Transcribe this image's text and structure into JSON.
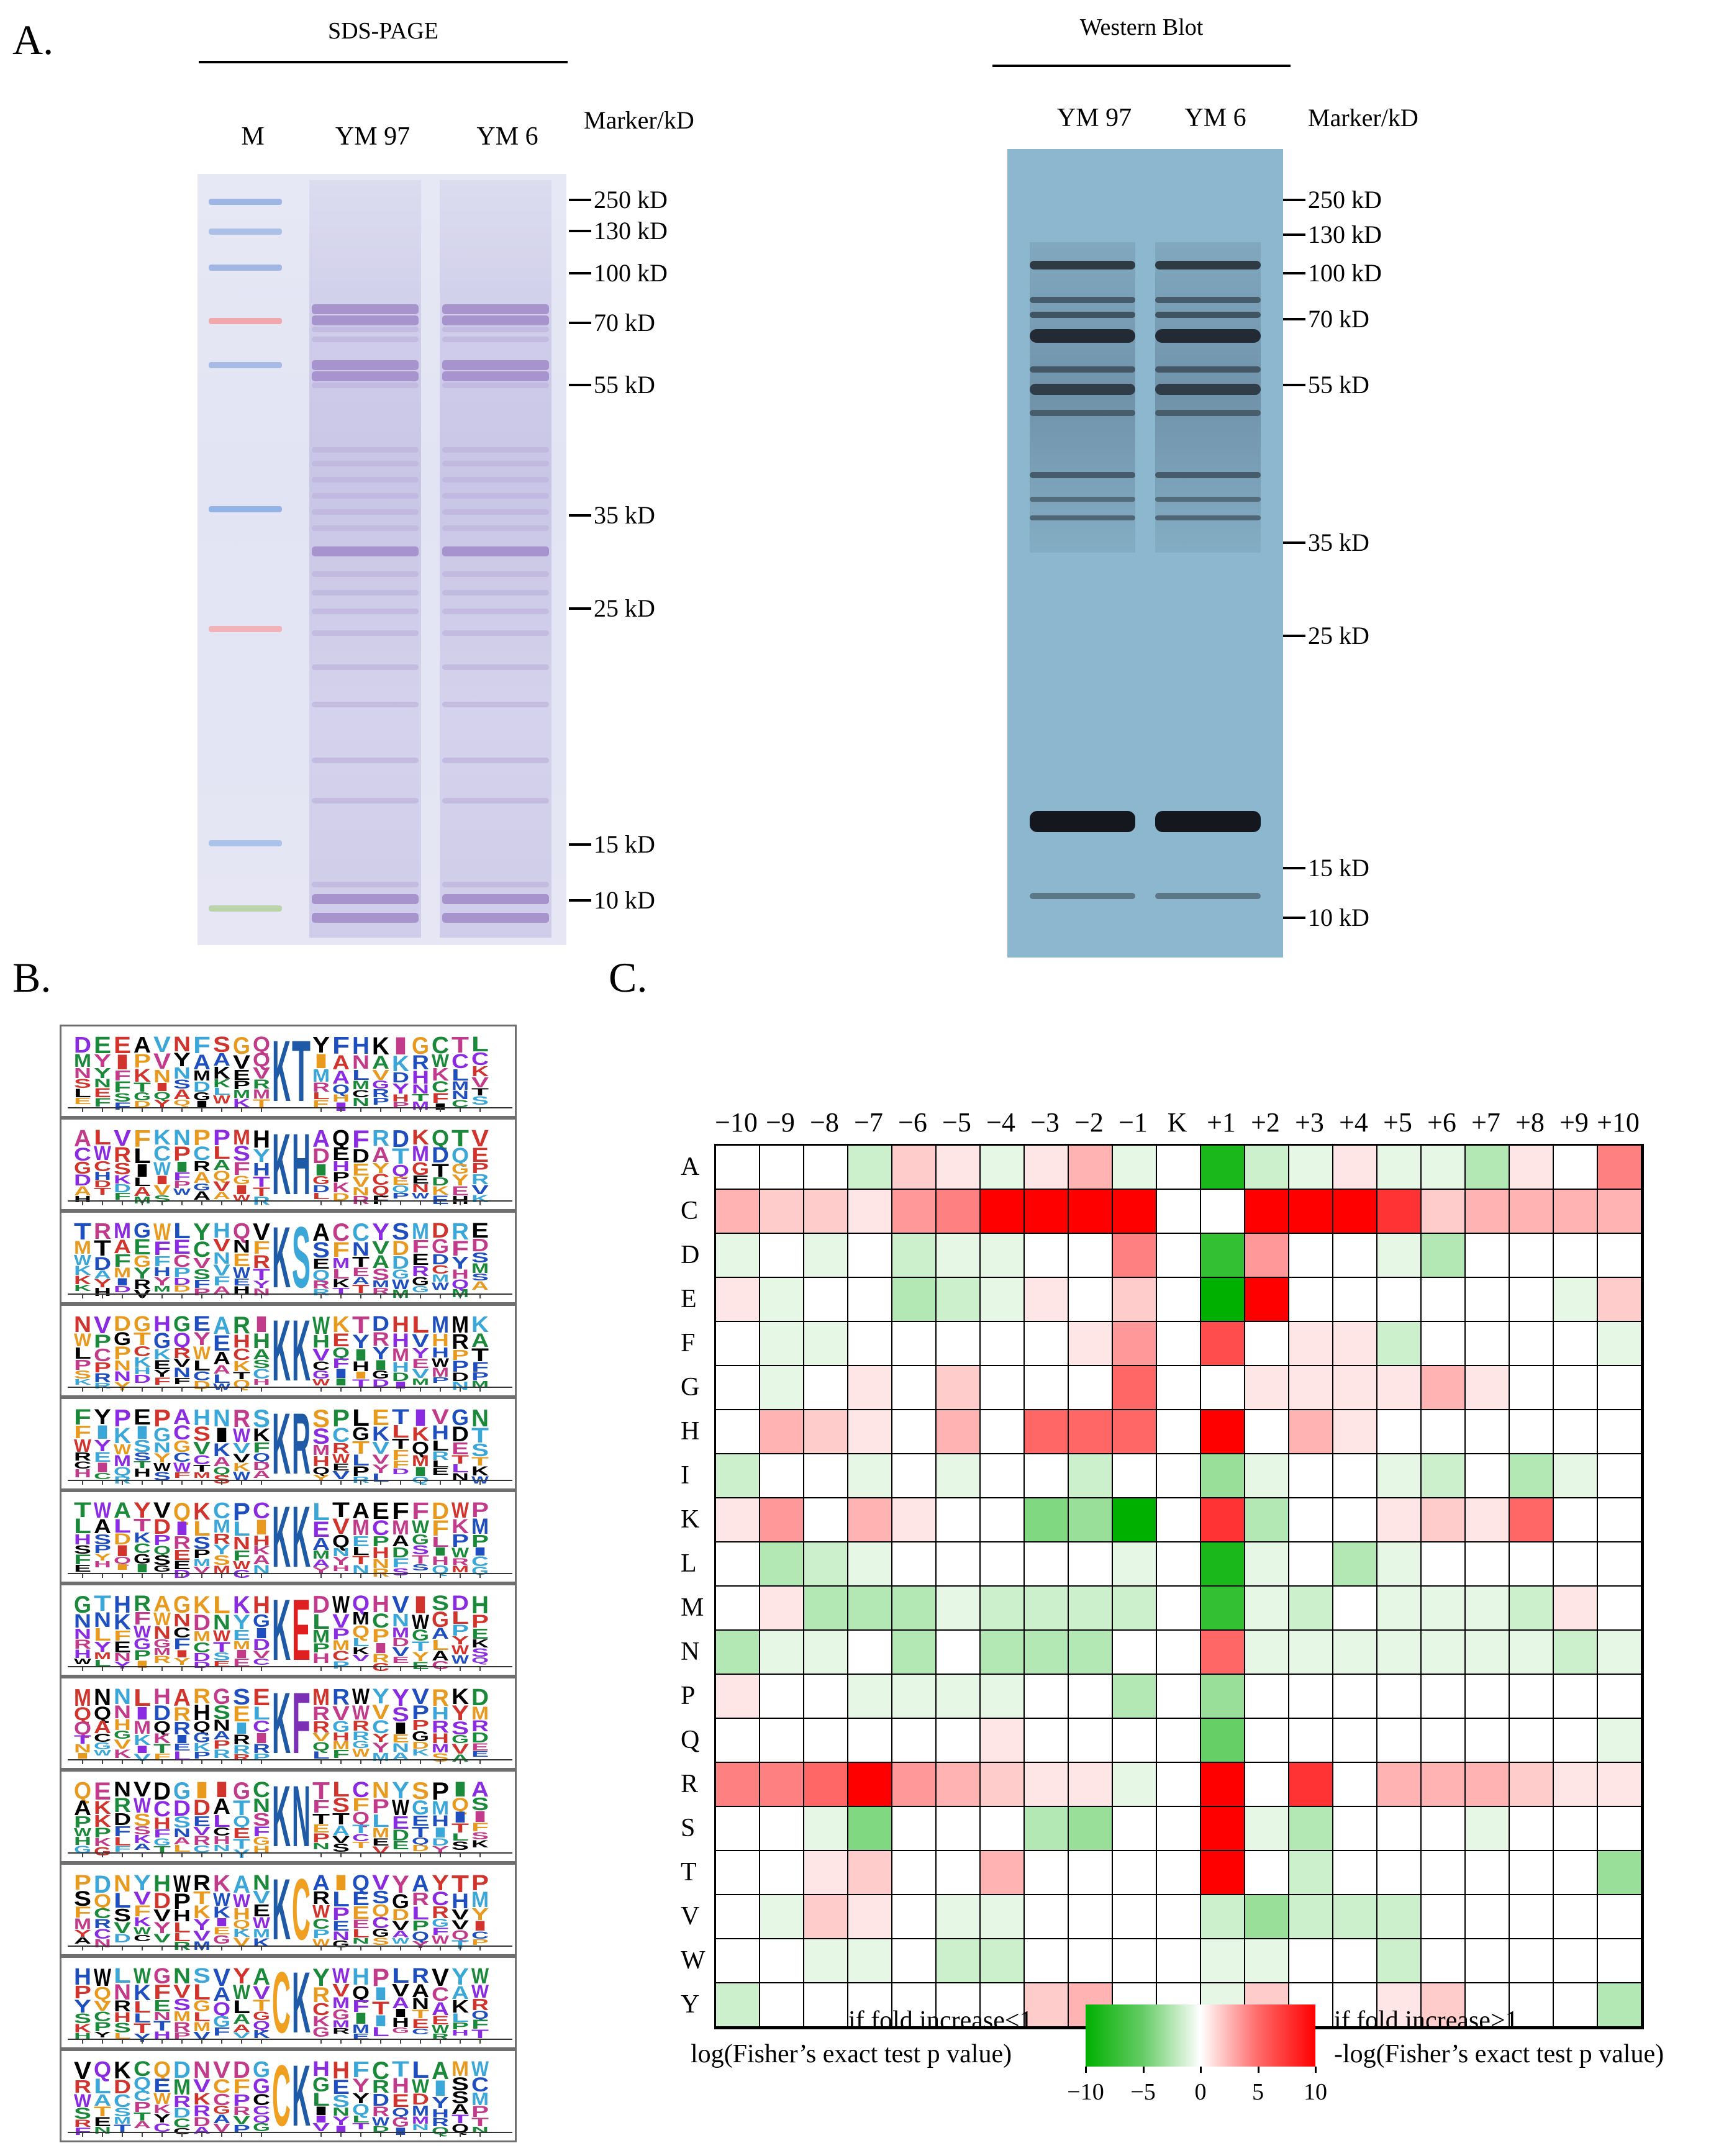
{
  "panel_a": {
    "letter": "A.",
    "sds": {
      "title": "SDS-PAGE",
      "lanes": [
        "M",
        "YM 97",
        "YM 6"
      ],
      "marker_header": "Marker/kD",
      "markers": [
        "250 kD",
        "130 kD",
        "100 kD",
        "70 kD",
        "55 kD",
        "35 kD",
        "25 kD",
        "15 kD",
        "10 kD"
      ]
    },
    "western": {
      "title": "Western Blot",
      "lanes": [
        "YM 97",
        "YM 6"
      ],
      "marker_header": "Marker/kD",
      "markers": [
        "250 kD",
        "130 kD",
        "100 kD",
        "70 kD",
        "55 kD",
        "35 kD",
        "25 kD",
        "15 kD",
        "10 kD"
      ]
    }
  },
  "panel_b": {
    "letter": "B.",
    "central_letters": [
      "KT",
      "KH",
      "KS",
      "KK",
      "KR",
      "KK",
      "KE",
      "KF",
      "KN",
      "KC",
      "CK",
      "CK"
    ]
  },
  "panel_c": {
    "letter": "C.",
    "columns": [
      "−10",
      "−9",
      "−8",
      "−7",
      "−6",
      "−5",
      "−4",
      "−3",
      "−2",
      "−1",
      "K",
      "+1",
      "+2",
      "+3",
      "+4",
      "+5",
      "+6",
      "+7",
      "+8",
      "+9",
      "+10"
    ],
    "rows": [
      "A",
      "C",
      "D",
      "E",
      "F",
      "G",
      "H",
      "I",
      "K",
      "L",
      "M",
      "N",
      "P",
      "Q",
      "R",
      "S",
      "T",
      "V",
      "W",
      "Y"
    ],
    "legend": {
      "left_line1": "if fold increase<1",
      "left_line2": "log(Fisher’s exact test p value)",
      "right_line1": "if fold increase>1",
      "right_line2": "-log(Fisher’s exact test p value)",
      "ticks": [
        "−10",
        "−5",
        "0",
        "5",
        "10"
      ]
    }
  },
  "chart_data": {
    "type": "heatmap",
    "x": [
      "-10",
      "-9",
      "-8",
      "-7",
      "-6",
      "-5",
      "-4",
      "-3",
      "-2",
      "-1",
      "K",
      "+1",
      "+2",
      "+3",
      "+4",
      "+5",
      "+6",
      "+7",
      "+8",
      "+9",
      "+10"
    ],
    "y": [
      "A",
      "C",
      "D",
      "E",
      "F",
      "G",
      "H",
      "I",
      "K",
      "L",
      "M",
      "N",
      "P",
      "Q",
      "R",
      "S",
      "T",
      "V",
      "W",
      "Y"
    ],
    "zlim": [
      -10,
      10
    ],
    "values": [
      [
        0,
        0,
        0,
        -2,
        2,
        1,
        -1,
        1,
        3,
        -1,
        0,
        -9,
        -2,
        -1,
        1,
        -1,
        -1,
        -3,
        1,
        0,
        5
      ],
      [
        3,
        2,
        2,
        1,
        4,
        5,
        10,
        10,
        10,
        10,
        0,
        0,
        10,
        10,
        10,
        8,
        2,
        3,
        3,
        3,
        3
      ],
      [
        -1,
        0,
        -1,
        0,
        -2,
        -1,
        -1,
        0,
        0,
        5,
        0,
        -8,
        4,
        0,
        0,
        -1,
        -3,
        0,
        0,
        0,
        0
      ],
      [
        1,
        -1,
        0,
        0,
        -3,
        -2,
        -1,
        1,
        0,
        2,
        0,
        -10,
        10,
        0,
        0,
        0,
        0,
        0,
        0,
        -1,
        2
      ],
      [
        0,
        -1,
        -1,
        0,
        0,
        0,
        0,
        0,
        1,
        4,
        0,
        7,
        0,
        1,
        1,
        -2,
        0,
        0,
        0,
        0,
        -1
      ],
      [
        0,
        -1,
        0,
        1,
        0,
        2,
        0,
        0,
        0,
        6,
        0,
        0,
        1,
        1,
        1,
        1,
        3,
        1,
        0,
        0,
        0
      ],
      [
        0,
        3,
        2,
        1,
        0,
        3,
        0,
        6,
        6,
        6,
        0,
        10,
        0,
        3,
        1,
        0,
        0,
        0,
        0,
        0,
        0
      ],
      [
        -2,
        0,
        0,
        -1,
        0,
        -1,
        0,
        0,
        -2,
        0,
        0,
        -4,
        -1,
        0,
        0,
        -1,
        -2,
        0,
        -3,
        -1,
        0
      ],
      [
        1,
        4,
        0,
        3,
        1,
        0,
        0,
        -5,
        -4,
        -10,
        0,
        8,
        -3,
        0,
        0,
        1,
        2,
        1,
        6,
        0,
        0
      ],
      [
        0,
        -3,
        -2,
        -1,
        0,
        0,
        0,
        0,
        0,
        -1,
        0,
        -9,
        -1,
        0,
        -3,
        -1,
        0,
        0,
        0,
        0,
        0
      ],
      [
        0,
        1,
        -3,
        -3,
        -3,
        -1,
        -2,
        -2,
        -2,
        -2,
        0,
        -8,
        -1,
        -2,
        0,
        -1,
        -1,
        -1,
        -2,
        1,
        0
      ],
      [
        -3,
        -1,
        -1,
        0,
        -3,
        0,
        -3,
        -3,
        -3,
        0,
        0,
        6,
        -1,
        -1,
        -1,
        -1,
        -1,
        -1,
        -1,
        -2,
        -1
      ],
      [
        1,
        0,
        0,
        -1,
        -1,
        -1,
        -1,
        0,
        0,
        -3,
        0,
        -4,
        0,
        0,
        0,
        0,
        0,
        0,
        0,
        0,
        0
      ],
      [
        0,
        0,
        0,
        0,
        0,
        0,
        1,
        0,
        0,
        0,
        0,
        -6,
        0,
        0,
        0,
        0,
        0,
        0,
        0,
        0,
        -1
      ],
      [
        5,
        5,
        6,
        10,
        4,
        3,
        2,
        1,
        1,
        -1,
        0,
        10,
        0,
        8,
        0,
        3,
        3,
        3,
        2,
        1,
        1
      ],
      [
        0,
        0,
        -1,
        -5,
        0,
        0,
        0,
        -3,
        -4,
        0,
        0,
        10,
        -1,
        -3,
        0,
        0,
        0,
        -1,
        0,
        0,
        0
      ],
      [
        0,
        0,
        1,
        2,
        0,
        0,
        3,
        0,
        0,
        0,
        0,
        10,
        0,
        -2,
        0,
        0,
        0,
        0,
        0,
        0,
        -4
      ],
      [
        0,
        -1,
        2,
        1,
        0,
        -1,
        -1,
        0,
        0,
        0,
        0,
        -2,
        -4,
        -2,
        -2,
        -2,
        0,
        0,
        0,
        0,
        0
      ],
      [
        0,
        0,
        -1,
        -1,
        0,
        -2,
        -2,
        0,
        0,
        0,
        0,
        -1,
        -1,
        0,
        0,
        -2,
        0,
        0,
        0,
        0,
        0
      ],
      [
        -2,
        0,
        0,
        0,
        0,
        0,
        0,
        2,
        3,
        0,
        0,
        -1,
        2,
        0,
        0,
        1,
        2,
        0,
        0,
        0,
        -3
      ]
    ]
  }
}
